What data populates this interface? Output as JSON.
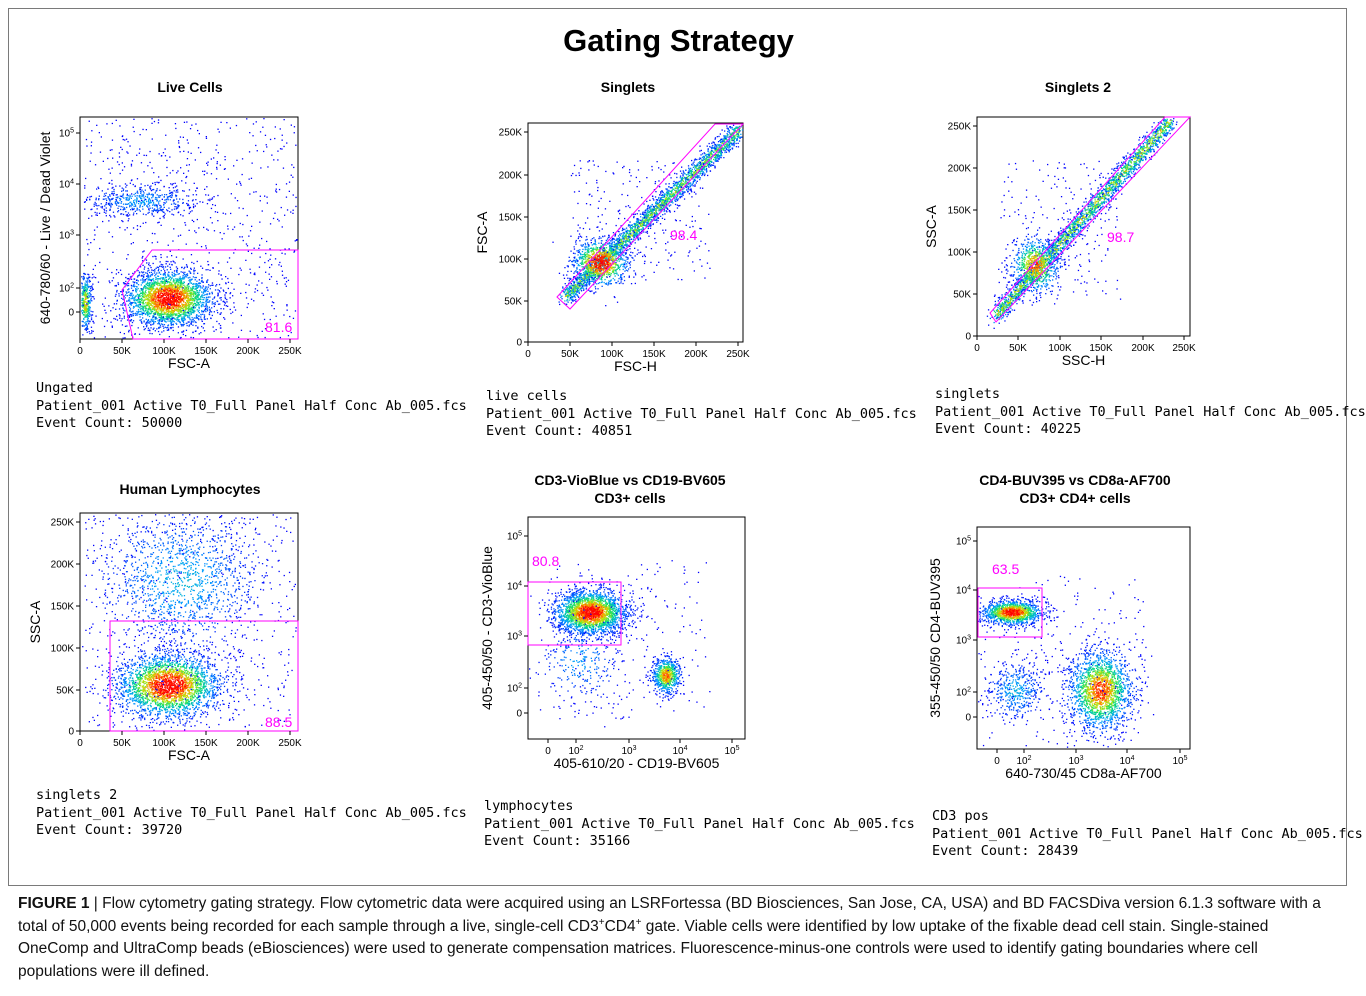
{
  "figure": {
    "title": "Gating Strategy",
    "caption_label": "FIGURE 1",
    "caption_text": " | Flow cytometry gating strategy. Flow cytometric data were acquired using an LSRFortessa (BD Biosciences, San Jose, CA, USA) and BD FACSDiva version 6.1.3 software with a total of 50,000 events being recorded for each sample through a live, single-cell CD3",
    "caption_sup1": "+",
    "caption_mid": "CD4",
    "caption_sup2": "+",
    "caption_end": " gate. Viable cells were identified by low uptake of the fixable dead cell stain. Single-stained OneComp and UltraComp beads (eBiosciences) were used to generate compensation matrices. Fluorescence-minus-one controls were used to identify gating boundaries where cell populations were ill defined."
  },
  "chart_data": [
    {
      "type": "scatter",
      "title": "Live Cells",
      "xlabel": "FSC-A",
      "ylabel": "640-780/60 - Live / Dead Violet",
      "x_ticks": [
        "0",
        "50K",
        "100K",
        "150K",
        "200K",
        "250K"
      ],
      "y_ticks": [
        "10^5",
        "10^4",
        "10^3",
        "10^2",
        "0"
      ],
      "y_scale": "biexponential",
      "gate_percent": "81.6",
      "meta": {
        "parent": "Ungated",
        "file": "Patient_001 Active T0_Full Panel Half Conc Ab_005.fcs",
        "event_count": "Event Count: 50000"
      },
      "populations": [
        {
          "x": 105000,
          "y_decade": 1.9,
          "spread_x": 40000,
          "spread_y": 0.55,
          "weight": 0.55
        },
        {
          "x": 55000,
          "y_decade": 3.6,
          "spread_x": 40000,
          "spread_y": 0.35,
          "weight": 0.1
        },
        {
          "x": 3000,
          "y_decade": 1.5,
          "spread_x": 3000,
          "spread_y": 0.9,
          "weight": 0.08
        }
      ]
    },
    {
      "type": "scatter",
      "title": "Singlets",
      "xlabel": "FSC-H",
      "ylabel": "FSC-A",
      "x_ticks": [
        "0",
        "50K",
        "100K",
        "150K",
        "200K",
        "250K"
      ],
      "y_ticks": [
        "250K",
        "200K",
        "150K",
        "100K",
        "50K",
        "0"
      ],
      "gate_percent": "98.4",
      "meta": {
        "parent": "live cells",
        "file": "Patient_001 Active T0_Full Panel Half Conc Ab_005.fcs",
        "event_count": "Event Count: 40851"
      }
    },
    {
      "type": "scatter",
      "title": "Singlets 2",
      "xlabel": "SSC-H",
      "ylabel": "SSC-A",
      "x_ticks": [
        "0",
        "50K",
        "100K",
        "150K",
        "200K",
        "250K"
      ],
      "y_ticks": [
        "250K",
        "200K",
        "150K",
        "100K",
        "50K",
        "0"
      ],
      "gate_percent": "98.7",
      "meta": {
        "parent": "singlets",
        "file": "Patient_001 Active T0_Full Panel Half Conc Ab_005.fcs",
        "event_count": "Event Count: 40225"
      }
    },
    {
      "type": "scatter",
      "title": "Human Lymphocytes",
      "xlabel": "FSC-A",
      "ylabel": "SSC-A",
      "x_ticks": [
        "0",
        "50K",
        "100K",
        "150K",
        "200K",
        "250K"
      ],
      "y_ticks": [
        "250K",
        "200K",
        "150K",
        "100K",
        "50K",
        "0"
      ],
      "gate_percent": "88.5",
      "meta": {
        "parent": "singlets 2",
        "file": "Patient_001 Active T0_Full Panel Half Conc Ab_005.fcs",
        "event_count": "Event Count: 39720"
      }
    },
    {
      "type": "scatter",
      "title": "CD3-VioBlue vs CD19-BV605",
      "subtitle": "CD3+ cells",
      "xlabel": "405-610/20 - CD19-BV605",
      "ylabel": "405-450/50 - CD3-VioBlue",
      "x_ticks": [
        "0",
        "10^2",
        "10^3",
        "10^4",
        "10^5"
      ],
      "y_ticks": [
        "10^5",
        "10^4",
        "10^3",
        "10^2",
        "0"
      ],
      "gate_percent": "80.8",
      "meta": {
        "parent": "lymphocytes",
        "file": "Patient_001 Active T0_Full Panel Half Conc Ab_005.fcs",
        "event_count": "Event Count: 35166"
      }
    },
    {
      "type": "scatter",
      "title": "CD4-BUV395 vs CD8a-AF700",
      "subtitle": "CD3+ CD4+ cells",
      "xlabel": "640-730/45 CD8a-AF700",
      "ylabel": "355-450/50 CD4-BUV395",
      "x_ticks": [
        "0",
        "10^2",
        "10^3",
        "10^4",
        "10^5"
      ],
      "y_ticks": [
        "10^5",
        "10^4",
        "10^3",
        "10^2",
        "0"
      ],
      "gate_percent": "63.5",
      "meta": {
        "parent": "CD3 pos",
        "file": "Patient_001 Active T0_Full Panel Half Conc Ab_005.fcs",
        "event_count": "Event Count: 28439"
      }
    }
  ]
}
